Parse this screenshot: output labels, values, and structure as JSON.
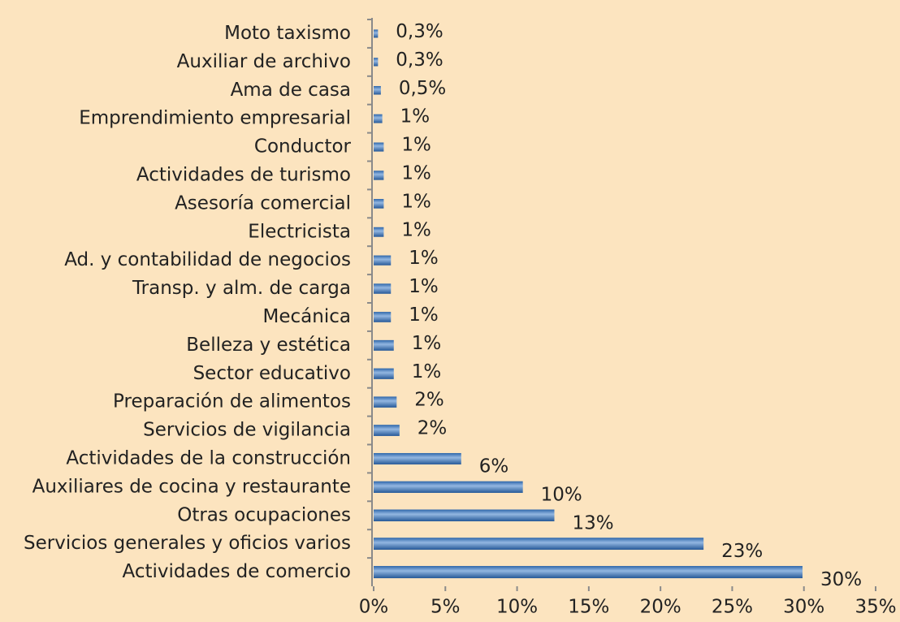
{
  "chart_data": {
    "type": "bar",
    "orientation": "horizontal",
    "color": "#3a7bc8",
    "categories": [
      "Moto taxismo",
      "Auxiliar de archivo",
      "Ama de casa",
      "Emprendimiento empresarial",
      "Conductor",
      "Actividades de turismo",
      "Asesoría comercial",
      "Electricista",
      "Ad. y contabilidad de negocios",
      "Transp. y alm. de carga",
      "Mecánica",
      "Belleza y estética",
      "Sector educativo",
      "Preparación de alimentos",
      "Servicios de vigilancia",
      "Actividades de la construcción",
      "Auxiliares de cocina y restaurante",
      "Otras ocupaciones",
      "Servicios generales y oficios varios",
      "Actividades de comercio"
    ],
    "values": [
      0.3,
      0.3,
      0.5,
      0.6,
      0.7,
      0.7,
      0.7,
      0.7,
      1.2,
      1.2,
      1.2,
      1.4,
      1.4,
      1.6,
      1.8,
      6.1,
      10.4,
      12.6,
      23,
      29.9
    ],
    "value_labels": [
      "0,3%",
      "0,3%",
      "0,5%",
      "1%",
      "1%",
      "1%",
      "1%",
      "1%",
      "1%",
      "1%",
      "1%",
      "1%",
      "1%",
      "2%",
      "2%",
      "6%",
      "10%",
      "13%",
      "23%",
      "30%"
    ],
    "xlim": [
      0,
      35
    ],
    "xticks": [
      {
        "value": 0,
        "label": "0%"
      },
      {
        "value": 5,
        "label": "5%"
      },
      {
        "value": 10,
        "label": "10%"
      },
      {
        "value": 15,
        "label": "15%"
      },
      {
        "value": 20,
        "label": "20%"
      },
      {
        "value": 25,
        "label": "25%"
      },
      {
        "value": 30,
        "label": "30%"
      },
      {
        "value": 35,
        "label": "35%"
      }
    ]
  }
}
